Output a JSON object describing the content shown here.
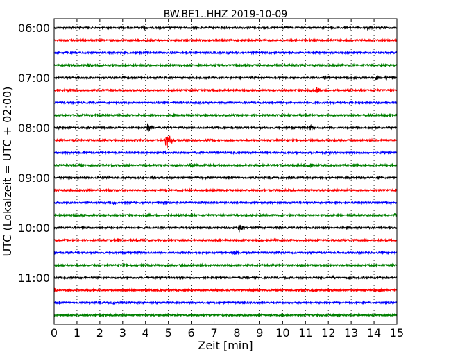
{
  "chart_data": {
    "type": "line",
    "title": "BW.BE1..HHZ 2019-10-09",
    "xlabel": "Zeit  [min]",
    "ylabel": "UTC (Lokalzeit = UTC + 02:00)",
    "xlim": [
      0,
      15
    ],
    "xticks": [
      0,
      1,
      2,
      3,
      4,
      5,
      6,
      7,
      8,
      9,
      10,
      11,
      12,
      13,
      14,
      15
    ],
    "grid": "vertical dotted",
    "row_minutes": 15,
    "start_time": "06:00",
    "ytick_labels": [
      {
        "row": 0,
        "label": "06:00"
      },
      {
        "row": 4,
        "label": "07:00"
      },
      {
        "row": 8,
        "label": "08:00"
      },
      {
        "row": 12,
        "label": "09:00"
      },
      {
        "row": 16,
        "label": "10:00"
      },
      {
        "row": 20,
        "label": "11:00"
      }
    ],
    "trace_colors": [
      "#000000",
      "#ff0000",
      "#0000ff",
      "#008000"
    ],
    "series": [
      {
        "row": 0,
        "events": [
          {
            "t": 0.4,
            "a": 1.5
          },
          {
            "t": 2.7,
            "a": 2
          },
          {
            "t": 3.9,
            "a": 3
          },
          {
            "t": 5.1,
            "a": 1.5
          },
          {
            "t": 9.2,
            "a": 2.5
          },
          {
            "t": 9.9,
            "a": 2.5
          },
          {
            "t": 13.7,
            "a": 3.5
          }
        ]
      },
      {
        "row": 1,
        "events": [
          {
            "t": 4.0,
            "a": 3
          },
          {
            "t": 6.5,
            "a": 1.5
          },
          {
            "t": 10.2,
            "a": 1.5
          }
        ]
      },
      {
        "row": 2,
        "events": [
          {
            "t": 0.7,
            "a": 2
          },
          {
            "t": 4.0,
            "a": 2.5
          },
          {
            "t": 5.1,
            "a": 2
          },
          {
            "t": 7.6,
            "a": 3
          },
          {
            "t": 9.5,
            "a": 2
          },
          {
            "t": 11.5,
            "a": 1.5
          },
          {
            "t": 12.2,
            "a": 1.5
          }
        ]
      },
      {
        "row": 3,
        "events": [
          {
            "t": 1.5,
            "a": 3
          },
          {
            "t": 5.7,
            "a": 2
          },
          {
            "t": 11.4,
            "a": 2
          }
        ]
      },
      {
        "row": 4,
        "events": [
          {
            "t": 0.8,
            "a": 1.5
          },
          {
            "t": 3.0,
            "a": 3
          },
          {
            "t": 6.1,
            "a": 1.5
          },
          {
            "t": 11.8,
            "a": 3
          },
          {
            "t": 13.1,
            "a": 1.5
          },
          {
            "t": 14.1,
            "a": 3
          },
          {
            "t": 14.5,
            "a": 3
          }
        ]
      },
      {
        "row": 5,
        "events": [
          {
            "t": 0.6,
            "a": 2
          },
          {
            "t": 11.1,
            "a": 5
          },
          {
            "t": 11.5,
            "a": 5
          },
          {
            "t": 12.3,
            "a": 1.5
          }
        ]
      },
      {
        "row": 6,
        "events": [
          {
            "t": 3.1,
            "a": 1.5
          },
          {
            "t": 8.6,
            "a": 1.5
          }
        ]
      },
      {
        "row": 7,
        "events": [
          {
            "t": 1.1,
            "a": 1.5
          },
          {
            "t": 5.2,
            "a": 2.5
          },
          {
            "t": 6.6,
            "a": 2.5
          },
          {
            "t": 13.7,
            "a": 3
          }
        ]
      },
      {
        "row": 8,
        "events": [
          {
            "t": 0.2,
            "a": 2
          },
          {
            "t": 4.1,
            "a": 8
          },
          {
            "t": 6.3,
            "a": 2
          },
          {
            "t": 11.2,
            "a": 4
          },
          {
            "t": 12.2,
            "a": 1.5
          }
        ]
      },
      {
        "row": 9,
        "events": [
          {
            "t": 0.1,
            "a": 2
          },
          {
            "t": 4.9,
            "a": 16
          },
          {
            "t": 6.8,
            "a": 2
          },
          {
            "t": 13.1,
            "a": 2
          }
        ]
      },
      {
        "row": 10,
        "events": [
          {
            "t": 1.3,
            "a": 2.5
          },
          {
            "t": 4.8,
            "a": 2.5
          },
          {
            "t": 7.0,
            "a": 2.5
          },
          {
            "t": 12.3,
            "a": 1.5
          },
          {
            "t": 14.4,
            "a": 3
          }
        ]
      },
      {
        "row": 11,
        "events": [
          {
            "t": 0.2,
            "a": 1.5
          },
          {
            "t": 6.0,
            "a": 3
          },
          {
            "t": 11.1,
            "a": 6
          }
        ]
      },
      {
        "row": 12,
        "events": [
          {
            "t": 0.7,
            "a": 3
          },
          {
            "t": 2.4,
            "a": 1.5
          },
          {
            "t": 4.3,
            "a": 2
          },
          {
            "t": 14.2,
            "a": 2.5
          }
        ]
      },
      {
        "row": 13,
        "events": [
          {
            "t": 0.4,
            "a": 1.5
          },
          {
            "t": 2.5,
            "a": 2
          },
          {
            "t": 9.0,
            "a": 2
          }
        ]
      },
      {
        "row": 14,
        "events": [
          {
            "t": 2.6,
            "a": 3
          },
          {
            "t": 4.6,
            "a": 2
          }
        ]
      },
      {
        "row": 15,
        "events": [
          {
            "t": 1.2,
            "a": 3
          },
          {
            "t": 3.2,
            "a": 1.5
          },
          {
            "t": 10.7,
            "a": 2
          },
          {
            "t": 14.9,
            "a": 3
          }
        ]
      },
      {
        "row": 16,
        "events": [
          {
            "t": 6.2,
            "a": 1.5
          },
          {
            "t": 8.1,
            "a": 8
          },
          {
            "t": 8.8,
            "a": 2.5
          },
          {
            "t": 12.8,
            "a": 2
          }
        ]
      },
      {
        "row": 17,
        "events": [
          {
            "t": 2.8,
            "a": 3
          },
          {
            "t": 5.0,
            "a": 1.5
          }
        ]
      },
      {
        "row": 18,
        "events": [
          {
            "t": 1.2,
            "a": 1.5
          },
          {
            "t": 7.9,
            "a": 4
          },
          {
            "t": 10.9,
            "a": 1.5
          },
          {
            "t": 13.6,
            "a": 2
          }
        ]
      },
      {
        "row": 19,
        "events": [
          {
            "t": 9.7,
            "a": 1.5
          },
          {
            "t": 10.8,
            "a": 3
          },
          {
            "t": 11.8,
            "a": 1.5
          }
        ]
      },
      {
        "row": 20,
        "events": [
          {
            "t": 3.3,
            "a": 1.5
          },
          {
            "t": 5.0,
            "a": 2
          },
          {
            "t": 12.2,
            "a": 3.5
          }
        ]
      },
      {
        "row": 21,
        "events": [
          {
            "t": 0.0,
            "a": 3
          },
          {
            "t": 3.5,
            "a": 2
          },
          {
            "t": 9.6,
            "a": 2
          },
          {
            "t": 10.8,
            "a": 3
          },
          {
            "t": 11.3,
            "a": 2.5
          },
          {
            "t": 14.2,
            "a": 3
          }
        ]
      },
      {
        "row": 22,
        "events": [
          {
            "t": 1.5,
            "a": 1.5
          },
          {
            "t": 2.6,
            "a": 3
          }
        ]
      },
      {
        "row": 23,
        "events": [
          {
            "t": 2.0,
            "a": 1.5
          },
          {
            "t": 7.3,
            "a": 1.5
          },
          {
            "t": 11.3,
            "a": 1.5
          }
        ]
      }
    ]
  }
}
